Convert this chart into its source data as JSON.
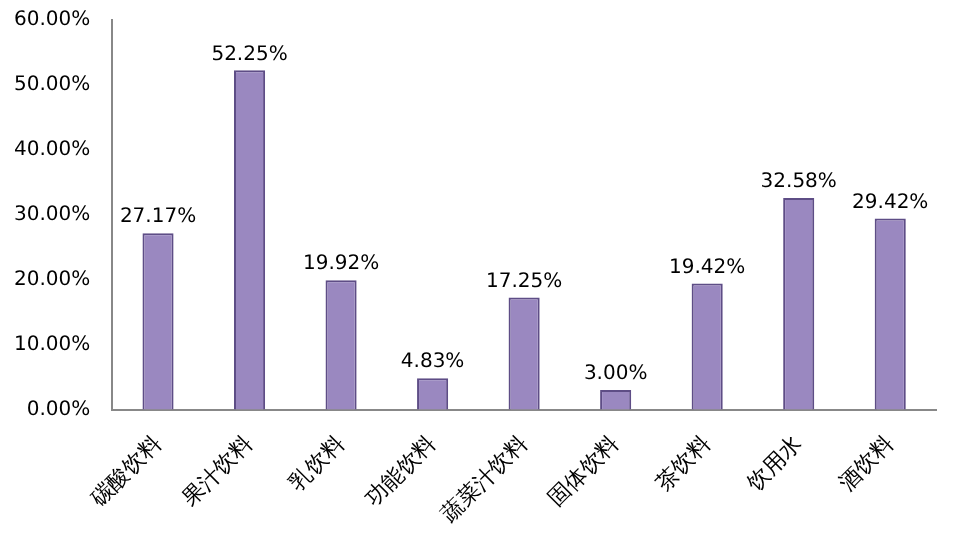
{
  "chart_data": {
    "type": "bar",
    "categories": [
      "碳酸饮料",
      "果汁饮料",
      "乳饮料",
      "功能饮料",
      "蔬菜汁饮料",
      "固体饮料",
      "茶饮料",
      "饮用水",
      "酒饮料"
    ],
    "values": [
      27.17,
      52.25,
      19.92,
      4.83,
      17.25,
      3.0,
      19.42,
      32.58,
      29.42
    ],
    "value_labels": [
      "27.17%",
      "52.25%",
      "19.92%",
      "4.83%",
      "17.25%",
      "3.00%",
      "19.42%",
      "32.58%",
      "29.42%"
    ],
    "color": "#9a88c0",
    "ylim": [
      0,
      60
    ],
    "yticks": [
      {
        "value": 0,
        "label": "0.00%"
      },
      {
        "value": 10,
        "label": "10.00%"
      },
      {
        "value": 20,
        "label": "20.00%"
      },
      {
        "value": 30,
        "label": "30.00%"
      },
      {
        "value": 40,
        "label": "40.00%"
      },
      {
        "value": 50,
        "label": "50.00%"
      },
      {
        "value": 60,
        "label": "60.00%"
      }
    ],
    "grid": false,
    "legend": false
  }
}
